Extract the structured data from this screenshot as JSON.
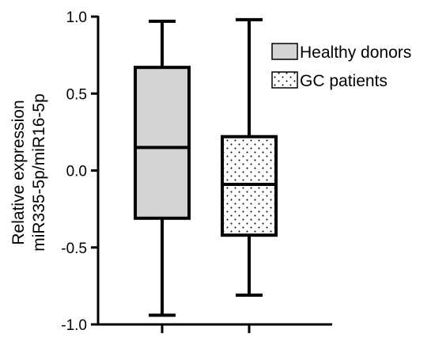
{
  "chart_data": {
    "type": "box",
    "title": "",
    "xlabel": "",
    "ylabel_lines": [
      "Relative expression",
      "miR335-5p/miR16-5p"
    ],
    "ylim": [
      -1.0,
      1.0
    ],
    "yticks": [
      1.0,
      0.5,
      0.0,
      -0.5,
      -1.0
    ],
    "ytick_labels": [
      "1.0",
      "0.5",
      "0.0",
      "-0.5",
      "-1.0"
    ],
    "grid": false,
    "legend_position": "top-right",
    "series": [
      {
        "name": "Healthy donors",
        "fill": "#d3d3d3",
        "pattern": "solid",
        "min": -0.94,
        "q1": -0.31,
        "median": 0.15,
        "q3": 0.67,
        "max": 0.97
      },
      {
        "name": "GC patients",
        "fill": "#ffffff",
        "pattern": "dotted",
        "min": -0.81,
        "q1": -0.42,
        "median": -0.09,
        "q3": 0.22,
        "max": 0.98
      }
    ]
  },
  "colors": {
    "stroke": "#000000",
    "healthy_fill": "#d3d3d3",
    "patient_fill": "#ffffff",
    "dot": "#000000"
  }
}
